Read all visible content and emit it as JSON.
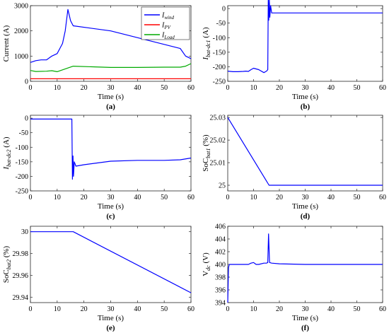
{
  "figure": {
    "panels": [
      {
        "label": "(a)",
        "xlabel": "Time (s)",
        "ylabel": "Current (A)",
        "xticks": [
          "0",
          "10",
          "20",
          "30",
          "40",
          "50",
          "60"
        ],
        "yticks": [
          "0",
          "1000",
          "2000",
          "3000"
        ]
      },
      {
        "label": "(b)",
        "xlabel": "Time (s)",
        "ylabel_main": "I",
        "ylabel_sub": "bat-dc1",
        "ylabel_unit": "(A)",
        "xticks": [
          "0",
          "10",
          "20",
          "30",
          "40",
          "50",
          "60"
        ],
        "yticks": [
          "-250",
          "-200",
          "-150",
          "-100",
          "-50",
          "0"
        ]
      },
      {
        "label": "(c)",
        "xlabel": "Time (s)",
        "ylabel_main": "I",
        "ylabel_sub": "bat-dc2",
        "ylabel_unit": "(A)",
        "xticks": [
          "0",
          "10",
          "20",
          "30",
          "40",
          "50",
          "60"
        ],
        "yticks": [
          "-250",
          "-200",
          "-150",
          "-100",
          "-50",
          "0"
        ]
      },
      {
        "label": "(d)",
        "xlabel": "Time (s)",
        "ylabel_main": "SoC",
        "ylabel_sub": "bat1",
        "ylabel_unit": "(%)",
        "xticks": [
          "0",
          "10",
          "20",
          "30",
          "40",
          "50",
          "60"
        ],
        "yticks": [
          "25",
          "25.01",
          "25.02",
          "25.03"
        ]
      },
      {
        "label": "(e)",
        "xlabel": "Time (s)",
        "ylabel_main": "SoC",
        "ylabel_sub": "bat2",
        "ylabel_unit": "(%)",
        "xticks": [
          "0",
          "10",
          "20",
          "30",
          "40",
          "50",
          "60"
        ],
        "yticks": [
          "29.94",
          "29.96",
          "29.98",
          "30"
        ]
      },
      {
        "label": "(f)",
        "xlabel": "Time (s)",
        "ylabel_main": "V",
        "ylabel_sub": "dc",
        "ylabel_unit": "(V)",
        "xticks": [
          "0",
          "10",
          "20",
          "30",
          "40",
          "50",
          "60"
        ],
        "yticks": [
          "394",
          "396",
          "398",
          "400",
          "402",
          "404",
          "406"
        ]
      }
    ],
    "legend": [
      {
        "main": "I",
        "sub": "wind",
        "color": "#0000ff"
      },
      {
        "main": "I",
        "sub": "PV",
        "color": "#ff0000"
      },
      {
        "main": "I",
        "sub": "Load",
        "color": "#00aa00"
      }
    ]
  },
  "chart_data": [
    {
      "type": "line",
      "xlim": [
        0,
        60
      ],
      "ylim": [
        0,
        3000
      ],
      "grid": false,
      "legend_position": "top-right",
      "series": [
        {
          "name": "I_wind",
          "color": "#0000ff",
          "x": [
            0,
            2,
            4,
            6,
            8,
            10,
            11,
            12,
            13,
            14,
            15,
            16,
            30,
            56,
            58,
            60
          ],
          "y": [
            750,
            820,
            850,
            850,
            1000,
            1100,
            1300,
            1500,
            2000,
            2850,
            2400,
            2200,
            2000,
            1300,
            1000,
            900
          ]
        },
        {
          "name": "I_PV",
          "color": "#ff0000",
          "x": [
            0,
            10,
            20,
            30,
            40,
            50,
            60
          ],
          "y": [
            100,
            100,
            100,
            100,
            100,
            100,
            100
          ]
        },
        {
          "name": "I_Load",
          "color": "#00aa00",
          "x": [
            0,
            2,
            6,
            8,
            10,
            16,
            30,
            40,
            50,
            56,
            58,
            60
          ],
          "y": [
            430,
            390,
            400,
            420,
            380,
            600,
            550,
            550,
            560,
            560,
            600,
            700
          ]
        }
      ]
    },
    {
      "type": "line",
      "xlim": [
        0,
        60
      ],
      "ylim": [
        -250,
        10
      ],
      "grid": false,
      "series": [
        {
          "color": "#0000ff",
          "x": [
            0,
            2,
            4,
            6,
            7,
            8,
            9,
            10,
            12,
            14,
            15,
            15.5,
            15.7,
            15.9,
            16.1,
            16.3,
            16.6,
            17,
            20,
            30,
            40,
            50,
            60
          ],
          "y": [
            -215,
            -217,
            -217,
            -216,
            -215,
            -216,
            -210,
            -205,
            -210,
            -220,
            -215,
            -210,
            35,
            -40,
            30,
            -30,
            10,
            -15,
            -15,
            -15,
            -15,
            -15,
            -15
          ]
        }
      ]
    },
    {
      "type": "line",
      "xlim": [
        0,
        60
      ],
      "ylim": [
        -250,
        10
      ],
      "grid": false,
      "series": [
        {
          "color": "#0000ff",
          "x": [
            0,
            15,
            15.5,
            15.7,
            15.9,
            16.1,
            16.4,
            17,
            20,
            30,
            40,
            50,
            56,
            60
          ],
          "y": [
            -3,
            -3,
            -3,
            -210,
            -130,
            -200,
            -150,
            -165,
            -160,
            -148,
            -145,
            -145,
            -143,
            -137
          ]
        }
      ]
    },
    {
      "type": "line",
      "xlim": [
        0,
        60
      ],
      "ylim": [
        24.9975,
        25.031
      ],
      "grid": false,
      "series": [
        {
          "color": "#0000ff",
          "x": [
            0,
            16,
            60
          ],
          "y": [
            25.03,
            25.0,
            25.0
          ]
        }
      ]
    },
    {
      "type": "line",
      "xlim": [
        0,
        60
      ],
      "ylim": [
        29.935,
        30.005
      ],
      "grid": false,
      "series": [
        {
          "color": "#0000ff",
          "x": [
            0,
            16,
            60
          ],
          "y": [
            30.0,
            30.0,
            29.944
          ]
        }
      ]
    },
    {
      "type": "line",
      "xlim": [
        0,
        60
      ],
      "ylim": [
        394,
        406
      ],
      "grid": false,
      "series": [
        {
          "color": "#0000ff",
          "x": [
            0,
            0.3,
            0.6,
            2,
            8,
            9,
            10,
            11,
            12,
            14,
            15,
            15.5,
            15.8,
            16.2,
            17,
            20,
            30,
            40,
            50,
            60
          ],
          "y": [
            394,
            399.5,
            400,
            400,
            400,
            400.2,
            400.3,
            400,
            400,
            400.2,
            400.2,
            400.3,
            404.8,
            400.3,
            400.2,
            400.1,
            400,
            400,
            400,
            400
          ]
        }
      ]
    }
  ]
}
